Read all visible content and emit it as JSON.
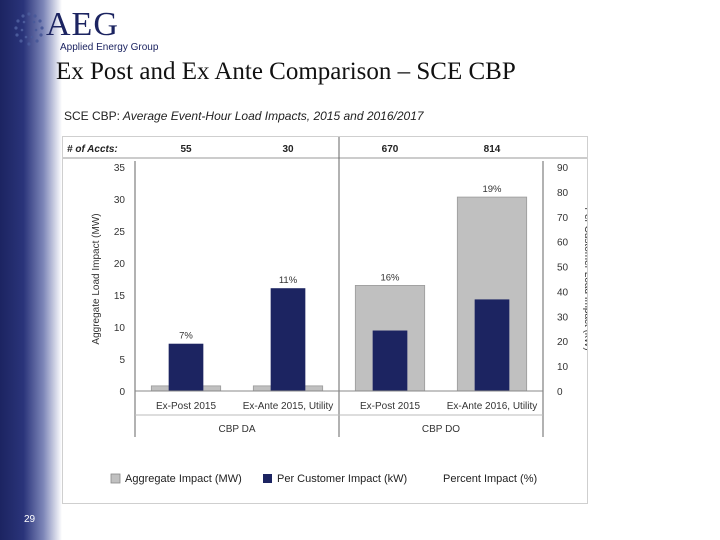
{
  "logo": {
    "name": "AEG",
    "tagline": "Applied Energy Group"
  },
  "slide": {
    "title": "Ex Post and Ex Ante Comparison – SCE CBP",
    "page_number": "29"
  },
  "colors": {
    "aggregate": "#c0c0c0",
    "per_customer": "#1c2461",
    "sidebar": "#1c2461"
  },
  "chart_data": {
    "type": "bar",
    "title": "SCE CBP: Average Event-Hour Load Impacts, 2015 and 2016/2017",
    "title_prefix": "SCE CBP:",
    "title_rest": " Average Event-Hour Load Impacts, 2015 and 2016/2017",
    "ylabel": "Aggregate Load Impact (MW)",
    "y2label": "Per Customer Load Impact (kW)",
    "ylim": [
      0,
      35
    ],
    "y2lim": [
      0,
      90
    ],
    "yticks": [
      0,
      5,
      10,
      15,
      20,
      25,
      30,
      35
    ],
    "y2ticks": [
      0,
      10,
      20,
      30,
      40,
      50,
      60,
      70,
      80,
      90
    ],
    "accounts_label": "# of Accts:",
    "categories": [
      "Ex-Post 2015",
      "Ex-Ante 2015, Utility",
      "Ex-Post 2015",
      "Ex-Ante 2016, Utility"
    ],
    "groups": [
      {
        "name": "CBP DA",
        "span": 2
      },
      {
        "name": "CBP DO",
        "span": 2
      }
    ],
    "accounts": [
      "55",
      "30",
      "670",
      "814"
    ],
    "series": [
      {
        "name": "Aggregate Impact (MW)",
        "axis": "left",
        "values": [
          0.8,
          0.8,
          16.5,
          30.3
        ]
      },
      {
        "name": "Per Customer Impact (kW)",
        "axis": "right",
        "values": [
          19,
          41.3,
          24.3,
          36.8
        ]
      },
      {
        "name": "Percent Impact (%)",
        "labels": [
          "7%",
          "11%",
          "16%",
          "19%"
        ]
      }
    ],
    "legend_position": "bottom"
  }
}
